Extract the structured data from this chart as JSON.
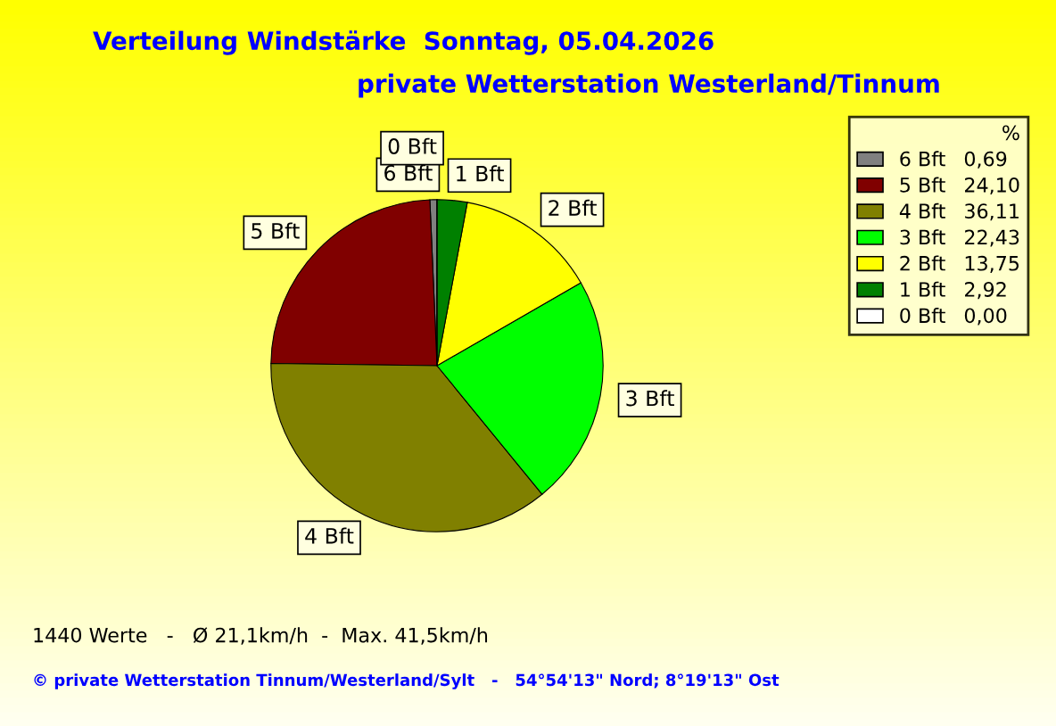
{
  "chart_data": {
    "type": "pie",
    "title": "Verteilung Windstärke  Sonntag, 05.04.2026",
    "subtitle": "private Wetterstation Westerland/Tinnum",
    "categories": [
      "6 Bft",
      "5 Bft",
      "4 Bft",
      "3 Bft",
      "2 Bft",
      "1 Bft",
      "0 Bft"
    ],
    "values": [
      0.69,
      24.1,
      36.11,
      22.43,
      13.75,
      2.92,
      0.0
    ],
    "value_labels": [
      "0,69",
      "24,10",
      "36,11",
      "22,43",
      "13,75",
      "2,92",
      "0,00"
    ],
    "colors": [
      "#808080",
      "#800000",
      "#808000",
      "#00ff00",
      "#ffff00",
      "#008000",
      "#ffffff"
    ],
    "legend_title": "%",
    "legend": "top right",
    "annotations": [
      "1440 Werte   -   Ø 21,1km/h  -  Max. 41,5km/h",
      "© private Wetterstation Tinnum/Westerland/Sylt   -   54°54'13\" Nord; 8°19'13\" Ost"
    ]
  }
}
